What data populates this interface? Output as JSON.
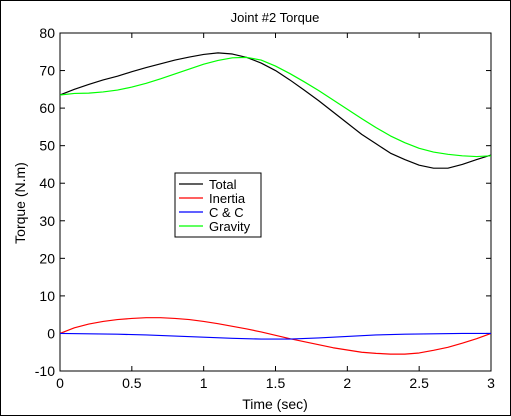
{
  "chart_data": {
    "type": "line",
    "title": "Joint #2 Torque",
    "xlabel": "Time (sec)",
    "ylabel": "Torque (N.m)",
    "xlim": [
      0,
      3
    ],
    "ylim": [
      -10,
      80
    ],
    "x_ticks": [
      0,
      0.5,
      1,
      1.5,
      2,
      2.5,
      3
    ],
    "x_tick_labels": [
      "0",
      "0.5",
      "1",
      "1.5",
      "2",
      "2.5",
      "3"
    ],
    "y_ticks": [
      -10,
      0,
      10,
      20,
      30,
      40,
      50,
      60,
      70,
      80
    ],
    "y_tick_labels": [
      "-10",
      "0",
      "10",
      "20",
      "30",
      "40",
      "50",
      "60",
      "70",
      "80"
    ],
    "grid": false,
    "legend_position": "center-left",
    "series": [
      {
        "name": "Total",
        "color": "#000000",
        "x": [
          0,
          0.1,
          0.2,
          0.3,
          0.4,
          0.5,
          0.6,
          0.7,
          0.8,
          0.9,
          1.0,
          1.1,
          1.2,
          1.3,
          1.4,
          1.5,
          1.6,
          1.7,
          1.8,
          1.9,
          2.0,
          2.1,
          2.2,
          2.3,
          2.4,
          2.5,
          2.6,
          2.7,
          2.8,
          2.9,
          3.0
        ],
        "y": [
          63.5,
          65.0,
          66.3,
          67.5,
          68.5,
          69.7,
          70.8,
          71.8,
          72.8,
          73.6,
          74.3,
          74.7,
          74.4,
          73.5,
          72.0,
          70.0,
          67.5,
          64.8,
          62.0,
          59.0,
          56.0,
          53.0,
          50.5,
          48.0,
          46.3,
          44.8,
          44.0,
          44.0,
          45.0,
          46.3,
          47.5
        ]
      },
      {
        "name": "Inertia",
        "color": "#ff0000",
        "x": [
          0,
          0.1,
          0.2,
          0.3,
          0.4,
          0.5,
          0.6,
          0.7,
          0.8,
          0.9,
          1.0,
          1.1,
          1.2,
          1.3,
          1.4,
          1.5,
          1.6,
          1.7,
          1.8,
          1.9,
          2.0,
          2.1,
          2.2,
          2.3,
          2.4,
          2.5,
          2.6,
          2.7,
          2.8,
          2.9,
          3.0
        ],
        "y": [
          0,
          1.5,
          2.5,
          3.2,
          3.7,
          4.0,
          4.2,
          4.2,
          4.0,
          3.7,
          3.2,
          2.6,
          1.9,
          1.2,
          0.4,
          -0.5,
          -1.4,
          -2.2,
          -3.0,
          -3.8,
          -4.4,
          -5.0,
          -5.3,
          -5.5,
          -5.5,
          -5.2,
          -4.5,
          -3.7,
          -2.6,
          -1.4,
          0
        ]
      },
      {
        "name": "C & C",
        "color": "#0000ff",
        "x": [
          0,
          0.2,
          0.4,
          0.6,
          0.8,
          1.0,
          1.2,
          1.4,
          1.6,
          1.8,
          2.0,
          2.2,
          2.4,
          2.6,
          2.8,
          3.0
        ],
        "y": [
          0,
          -0.1,
          -0.2,
          -0.4,
          -0.7,
          -1.0,
          -1.3,
          -1.5,
          -1.5,
          -1.2,
          -0.8,
          -0.4,
          -0.2,
          -0.1,
          0,
          0
        ]
      },
      {
        "name": "Gravity",
        "color": "#00ff00",
        "x": [
          0,
          0.1,
          0.2,
          0.3,
          0.4,
          0.5,
          0.6,
          0.7,
          0.8,
          0.9,
          1.0,
          1.1,
          1.2,
          1.3,
          1.4,
          1.5,
          1.6,
          1.7,
          1.8,
          1.9,
          2.0,
          2.1,
          2.2,
          2.3,
          2.4,
          2.5,
          2.6,
          2.7,
          2.8,
          2.9,
          3.0
        ],
        "y": [
          63.5,
          63.9,
          64.0,
          64.3,
          64.8,
          65.6,
          66.6,
          67.8,
          69.1,
          70.4,
          71.7,
          72.7,
          73.4,
          73.5,
          72.8,
          71.2,
          69.2,
          67.0,
          64.7,
          62.2,
          59.7,
          57.2,
          54.8,
          52.6,
          50.8,
          49.3,
          48.3,
          47.7,
          47.3,
          47.1,
          47.3
        ]
      }
    ]
  }
}
